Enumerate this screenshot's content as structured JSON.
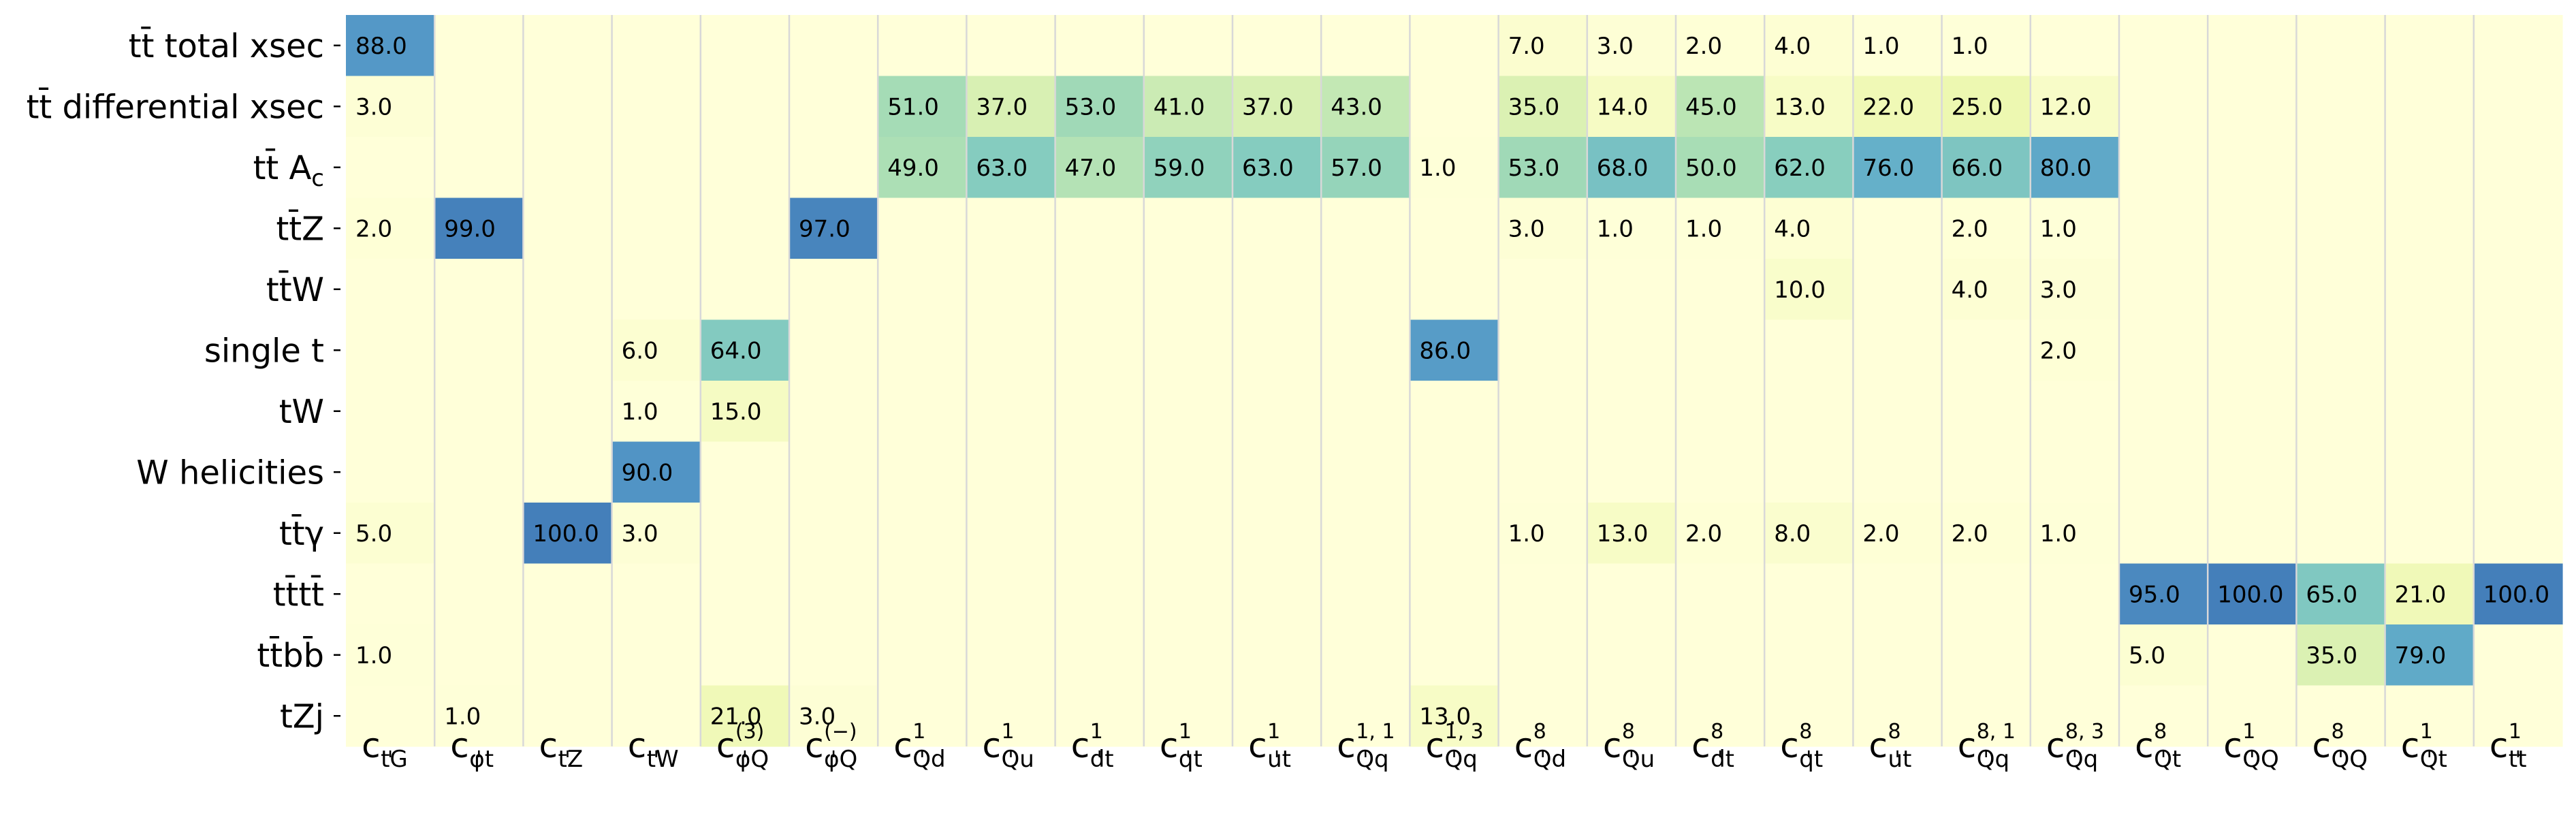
{
  "chart_data": {
    "type": "heatmap",
    "title": "",
    "xlabel": "",
    "ylabel": "",
    "grid": false,
    "colorbar": false,
    "colormap": "YlGnBu",
    "value_range": [
      0,
      100
    ],
    "rows": [
      {
        "label": "tt̄ total xsec"
      },
      {
        "label": "tt̄ differential xsec"
      },
      {
        "label": "tt̄ A",
        "sub": "c"
      },
      {
        "label": "tt̄Z"
      },
      {
        "label": "tt̄W"
      },
      {
        "label": "single t"
      },
      {
        "label": "tW"
      },
      {
        "label": "W helicities"
      },
      {
        "label": "tt̄γ"
      },
      {
        "label": "tt̄tt̄"
      },
      {
        "label": "tt̄bb̄"
      },
      {
        "label": "tZj"
      }
    ],
    "columns": [
      {
        "base": "c",
        "sub": "tG",
        "sup": ""
      },
      {
        "base": "c",
        "sub": "φt",
        "sup": ""
      },
      {
        "base": "c",
        "sub": "tZ",
        "sup": ""
      },
      {
        "base": "c",
        "sub": "tW",
        "sup": ""
      },
      {
        "base": "c",
        "sub": "φQ",
        "sup": "(3)"
      },
      {
        "base": "c",
        "sub": "φQ",
        "sup": "(−)"
      },
      {
        "base": "c",
        "sub": "Qd",
        "sup": "1"
      },
      {
        "base": "c",
        "sub": "Qu",
        "sup": "1"
      },
      {
        "base": "c",
        "sub": "dt",
        "sup": "1"
      },
      {
        "base": "c",
        "sub": "qt",
        "sup": "1"
      },
      {
        "base": "c",
        "sub": "ut",
        "sup": "1"
      },
      {
        "base": "c",
        "sub": "Qq",
        "sup": "1, 1"
      },
      {
        "base": "c",
        "sub": "Qq",
        "sup": "1, 3"
      },
      {
        "base": "c",
        "sub": "Qd",
        "sup": "8"
      },
      {
        "base": "c",
        "sub": "Qu",
        "sup": "8"
      },
      {
        "base": "c",
        "sub": "dt",
        "sup": "8"
      },
      {
        "base": "c",
        "sub": "qt",
        "sup": "8"
      },
      {
        "base": "c",
        "sub": "ut",
        "sup": "8"
      },
      {
        "base": "c",
        "sub": "Qq",
        "sup": "8, 1"
      },
      {
        "base": "c",
        "sub": "Qq",
        "sup": "8, 3"
      },
      {
        "base": "c",
        "sub": "Qt",
        "sup": "8"
      },
      {
        "base": "c",
        "sub": "QQ",
        "sup": "1"
      },
      {
        "base": "c",
        "sub": "QQ",
        "sup": "8"
      },
      {
        "base": "c",
        "sub": "Qt",
        "sup": "1"
      },
      {
        "base": "c",
        "sub": "tt",
        "sup": "1"
      }
    ],
    "values": [
      [
        88.0,
        null,
        null,
        null,
        null,
        null,
        null,
        null,
        null,
        null,
        null,
        null,
        null,
        7.0,
        3.0,
        2.0,
        4.0,
        1.0,
        1.0,
        null,
        null,
        null,
        null,
        null,
        null
      ],
      [
        3.0,
        null,
        null,
        null,
        null,
        null,
        51.0,
        37.0,
        53.0,
        41.0,
        37.0,
        43.0,
        null,
        35.0,
        14.0,
        45.0,
        13.0,
        22.0,
        25.0,
        12.0,
        null,
        null,
        null,
        null,
        null
      ],
      [
        null,
        null,
        null,
        null,
        null,
        null,
        49.0,
        63.0,
        47.0,
        59.0,
        63.0,
        57.0,
        1.0,
        53.0,
        68.0,
        50.0,
        62.0,
        76.0,
        66.0,
        80.0,
        null,
        null,
        null,
        null,
        null
      ],
      [
        2.0,
        99.0,
        null,
        null,
        null,
        97.0,
        null,
        null,
        null,
        null,
        null,
        null,
        null,
        3.0,
        1.0,
        1.0,
        4.0,
        null,
        2.0,
        1.0,
        null,
        null,
        null,
        null,
        null
      ],
      [
        null,
        null,
        null,
        null,
        null,
        null,
        null,
        null,
        null,
        null,
        null,
        null,
        null,
        null,
        null,
        null,
        10.0,
        null,
        4.0,
        3.0,
        null,
        null,
        null,
        null,
        null
      ],
      [
        null,
        null,
        null,
        6.0,
        64.0,
        null,
        null,
        null,
        null,
        null,
        null,
        null,
        86.0,
        null,
        null,
        null,
        null,
        null,
        null,
        2.0,
        null,
        null,
        null,
        null,
        null
      ],
      [
        null,
        null,
        null,
        1.0,
        15.0,
        null,
        null,
        null,
        null,
        null,
        null,
        null,
        null,
        null,
        null,
        null,
        null,
        null,
        null,
        null,
        null,
        null,
        null,
        null,
        null
      ],
      [
        null,
        null,
        null,
        90.0,
        null,
        null,
        null,
        null,
        null,
        null,
        null,
        null,
        null,
        null,
        null,
        null,
        null,
        null,
        null,
        null,
        null,
        null,
        null,
        null,
        null
      ],
      [
        5.0,
        null,
        100.0,
        3.0,
        null,
        null,
        null,
        null,
        null,
        null,
        null,
        null,
        null,
        1.0,
        13.0,
        2.0,
        8.0,
        2.0,
        2.0,
        1.0,
        null,
        null,
        null,
        null,
        null
      ],
      [
        null,
        null,
        null,
        null,
        null,
        null,
        null,
        null,
        null,
        null,
        null,
        null,
        null,
        null,
        null,
        null,
        null,
        null,
        null,
        null,
        95.0,
        100.0,
        65.0,
        21.0,
        100.0
      ],
      [
        1.0,
        null,
        null,
        null,
        null,
        null,
        null,
        null,
        null,
        null,
        null,
        null,
        null,
        null,
        null,
        null,
        null,
        null,
        null,
        null,
        5.0,
        null,
        35.0,
        79.0,
        null
      ],
      [
        null,
        1.0,
        null,
        null,
        21.0,
        3.0,
        null,
        null,
        null,
        null,
        null,
        null,
        13.0,
        null,
        null,
        null,
        null,
        null,
        null,
        null,
        null,
        null,
        null,
        null,
        null
      ]
    ]
  }
}
